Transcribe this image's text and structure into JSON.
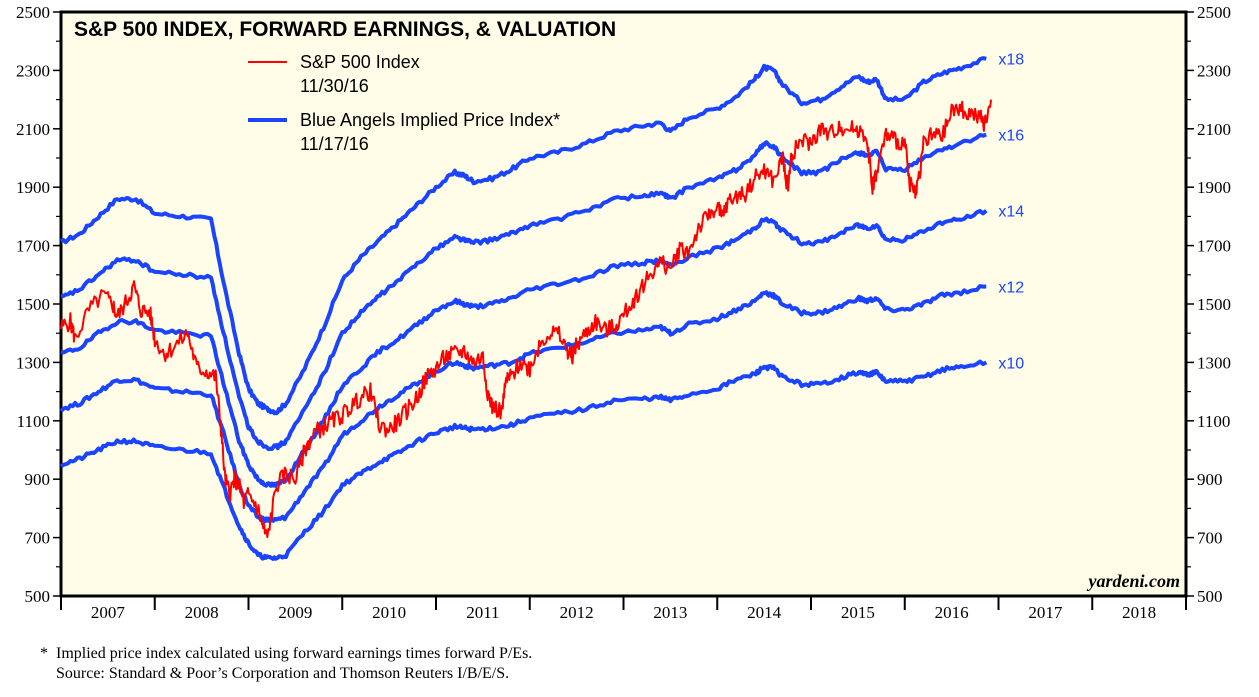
{
  "chart_data": {
    "type": "line",
    "title": "S&P 500 INDEX, FORWARD EARNINGS, & VALUATION",
    "xlabel": "",
    "ylabel": "",
    "ylim": [
      500,
      2500
    ],
    "xlim": [
      2007,
      2019
    ],
    "y_ticks": [
      500,
      700,
      900,
      1100,
      1300,
      1500,
      1700,
      1900,
      2100,
      2300,
      2500
    ],
    "x_tick_labels": [
      "2007",
      "2008",
      "2009",
      "2010",
      "2011",
      "2012",
      "2013",
      "2014",
      "2015",
      "2016",
      "2017",
      "2018"
    ],
    "legend": [
      {
        "name": "S&P 500 Index",
        "date": "11/30/16",
        "color": "#ff0000"
      },
      {
        "name": "Blue Angels Implied Price Index*",
        "date": "11/17/16",
        "color": "#1a44ff"
      }
    ],
    "legend_position": "top-left",
    "credit": "yardeni.com",
    "sp500": {
      "name": "S&P 500 Index",
      "x": [
        2007.0,
        2007.1,
        2007.15,
        2007.3,
        2007.45,
        2007.55,
        2007.6,
        2007.7,
        2007.78,
        2007.85,
        2007.95,
        2008.0,
        2008.1,
        2008.2,
        2008.35,
        2008.45,
        2008.55,
        2008.65,
        2008.7,
        2008.75,
        2008.8,
        2008.85,
        2008.9,
        2008.95,
        2009.0,
        2009.1,
        2009.15,
        2009.2,
        2009.3,
        2009.4,
        2009.5,
        2009.6,
        2009.7,
        2009.8,
        2009.9,
        2010.0,
        2010.1,
        2010.2,
        2010.3,
        2010.4,
        2010.5,
        2010.6,
        2010.7,
        2010.8,
        2010.9,
        2011.0,
        2011.1,
        2011.2,
        2011.3,
        2011.4,
        2011.5,
        2011.55,
        2011.6,
        2011.7,
        2011.75,
        2011.8,
        2011.9,
        2012.0,
        2012.1,
        2012.2,
        2012.3,
        2012.4,
        2012.45,
        2012.5,
        2012.6,
        2012.7,
        2012.8,
        2012.9,
        2013.0,
        2013.1,
        2013.2,
        2013.3,
        2013.4,
        2013.5,
        2013.6,
        2013.7,
        2013.8,
        2013.9,
        2014.0,
        2014.05,
        2014.1,
        2014.2,
        2014.3,
        2014.4,
        2014.5,
        2014.6,
        2014.7,
        2014.75,
        2014.8,
        2014.9,
        2015.0,
        2015.1,
        2015.2,
        2015.3,
        2015.4,
        2015.5,
        2015.6,
        2015.65,
        2015.7,
        2015.8,
        2015.9,
        2016.0,
        2016.05,
        2016.1,
        2016.15,
        2016.2,
        2016.3,
        2016.4,
        2016.5,
        2016.6,
        2016.7,
        2016.8,
        2016.85,
        2016.92
      ],
      "y": [
        1420,
        1440,
        1380,
        1480,
        1530,
        1500,
        1455,
        1510,
        1560,
        1480,
        1470,
        1380,
        1330,
        1350,
        1400,
        1280,
        1270,
        1250,
        1100,
        900,
        850,
        900,
        880,
        820,
        850,
        800,
        740,
        700,
        880,
        920,
        900,
        1000,
        1060,
        1080,
        1100,
        1120,
        1150,
        1180,
        1200,
        1080,
        1070,
        1100,
        1140,
        1180,
        1250,
        1280,
        1320,
        1330,
        1340,
        1300,
        1320,
        1200,
        1150,
        1130,
        1240,
        1250,
        1300,
        1280,
        1360,
        1400,
        1400,
        1340,
        1320,
        1360,
        1400,
        1440,
        1410,
        1420,
        1460,
        1510,
        1560,
        1610,
        1640,
        1620,
        1690,
        1680,
        1760,
        1800,
        1840,
        1790,
        1840,
        1870,
        1880,
        1930,
        1960,
        1920,
        2000,
        1900,
        2020,
        2060,
        2050,
        2100,
        2080,
        2110,
        2100,
        2100,
        2070,
        1900,
        1950,
        2080,
        2060,
        2050,
        1920,
        1880,
        1930,
        2050,
        2080,
        2070,
        2160,
        2170,
        2150,
        2140,
        2110,
        2200
      ]
    },
    "implied_series": [
      {
        "name": "x18",
        "x": [
          2007.0,
          2007.2,
          2007.4,
          2007.6,
          2007.8,
          2008.0,
          2008.3,
          2008.6,
          2008.75,
          2008.9,
          2009.0,
          2009.1,
          2009.2,
          2009.3,
          2009.4,
          2009.6,
          2009.8,
          2010.0,
          2010.2,
          2010.4,
          2010.6,
          2010.8,
          2011.0,
          2011.2,
          2011.3,
          2011.4,
          2011.6,
          2011.8,
          2012.0,
          2012.3,
          2012.6,
          2012.9,
          2013.2,
          2013.4,
          2013.5,
          2013.7,
          2014.0,
          2014.2,
          2014.4,
          2014.5,
          2014.6,
          2014.7,
          2014.9,
          2015.1,
          2015.3,
          2015.5,
          2015.6,
          2015.7,
          2015.8,
          2016.0,
          2016.2,
          2016.4,
          2016.6,
          2016.87
        ],
        "y": [
          1710,
          1740,
          1800,
          1860,
          1860,
          1810,
          1800,
          1790,
          1550,
          1330,
          1210,
          1160,
          1140,
          1130,
          1160,
          1280,
          1420,
          1580,
          1660,
          1720,
          1780,
          1840,
          1900,
          1950,
          1940,
          1920,
          1930,
          1960,
          2000,
          2020,
          2050,
          2090,
          2110,
          2120,
          2090,
          2140,
          2170,
          2210,
          2270,
          2310,
          2300,
          2250,
          2190,
          2200,
          2240,
          2280,
          2260,
          2270,
          2200,
          2200,
          2260,
          2290,
          2310,
          2340
        ]
      },
      {
        "name": "x16",
        "x": [
          2007.0,
          2007.2,
          2007.4,
          2007.6,
          2007.8,
          2008.0,
          2008.3,
          2008.6,
          2008.75,
          2008.9,
          2009.0,
          2009.1,
          2009.2,
          2009.3,
          2009.4,
          2009.6,
          2009.8,
          2010.0,
          2010.2,
          2010.4,
          2010.6,
          2010.8,
          2011.0,
          2011.2,
          2011.3,
          2011.4,
          2011.6,
          2011.8,
          2012.0,
          2012.3,
          2012.6,
          2012.9,
          2013.2,
          2013.4,
          2013.5,
          2013.7,
          2014.0,
          2014.2,
          2014.4,
          2014.5,
          2014.6,
          2014.7,
          2014.9,
          2015.1,
          2015.3,
          2015.5,
          2015.6,
          2015.7,
          2015.8,
          2016.0,
          2016.2,
          2016.4,
          2016.6,
          2016.87
        ],
        "y": [
          1520,
          1550,
          1600,
          1650,
          1650,
          1610,
          1600,
          1590,
          1380,
          1180,
          1080,
          1030,
          1010,
          1010,
          1030,
          1140,
          1260,
          1400,
          1470,
          1530,
          1580,
          1640,
          1690,
          1730,
          1720,
          1710,
          1720,
          1740,
          1770,
          1790,
          1820,
          1860,
          1870,
          1880,
          1860,
          1900,
          1930,
          1960,
          2010,
          2050,
          2040,
          2000,
          1950,
          1950,
          1990,
          2020,
          2010,
          2020,
          1960,
          1960,
          2000,
          2030,
          2050,
          2080
        ]
      },
      {
        "name": "x14",
        "x": [
          2007.0,
          2007.2,
          2007.4,
          2007.6,
          2007.8,
          2008.0,
          2008.3,
          2008.6,
          2008.75,
          2008.9,
          2009.0,
          2009.1,
          2009.2,
          2009.3,
          2009.4,
          2009.6,
          2009.8,
          2010.0,
          2010.2,
          2010.4,
          2010.6,
          2010.8,
          2011.0,
          2011.2,
          2011.3,
          2011.4,
          2011.6,
          2011.8,
          2012.0,
          2012.3,
          2012.6,
          2012.9,
          2013.2,
          2013.4,
          2013.5,
          2013.7,
          2014.0,
          2014.2,
          2014.4,
          2014.5,
          2014.6,
          2014.7,
          2014.9,
          2015.1,
          2015.3,
          2015.5,
          2015.6,
          2015.7,
          2015.8,
          2016.0,
          2016.2,
          2016.4,
          2016.6,
          2016.87
        ],
        "y": [
          1330,
          1350,
          1400,
          1440,
          1440,
          1410,
          1400,
          1390,
          1210,
          1030,
          950,
          900,
          880,
          880,
          900,
          1000,
          1100,
          1220,
          1280,
          1340,
          1380,
          1430,
          1480,
          1510,
          1500,
          1490,
          1500,
          1520,
          1550,
          1570,
          1590,
          1630,
          1640,
          1650,
          1630,
          1660,
          1690,
          1720,
          1760,
          1790,
          1780,
          1750,
          1710,
          1710,
          1740,
          1770,
          1760,
          1770,
          1720,
          1720,
          1750,
          1780,
          1790,
          1820
        ]
      },
      {
        "name": "x12",
        "x": [
          2007.0,
          2007.2,
          2007.4,
          2007.6,
          2007.8,
          2008.0,
          2008.3,
          2008.6,
          2008.75,
          2008.9,
          2009.0,
          2009.1,
          2009.2,
          2009.3,
          2009.4,
          2009.6,
          2009.8,
          2010.0,
          2010.2,
          2010.4,
          2010.6,
          2010.8,
          2011.0,
          2011.2,
          2011.3,
          2011.4,
          2011.6,
          2011.8,
          2012.0,
          2012.3,
          2012.6,
          2012.9,
          2013.2,
          2013.4,
          2013.5,
          2013.7,
          2014.0,
          2014.2,
          2014.4,
          2014.5,
          2014.6,
          2014.7,
          2014.9,
          2015.1,
          2015.3,
          2015.5,
          2015.6,
          2015.7,
          2015.8,
          2016.0,
          2016.2,
          2016.4,
          2016.6,
          2016.87
        ],
        "y": [
          1140,
          1160,
          1200,
          1240,
          1240,
          1210,
          1200,
          1190,
          1040,
          880,
          810,
          770,
          760,
          760,
          770,
          860,
          940,
          1050,
          1100,
          1150,
          1190,
          1230,
          1270,
          1300,
          1290,
          1280,
          1290,
          1300,
          1330,
          1350,
          1370,
          1400,
          1410,
          1420,
          1400,
          1430,
          1450,
          1480,
          1510,
          1540,
          1530,
          1500,
          1470,
          1470,
          1490,
          1520,
          1510,
          1520,
          1480,
          1480,
          1500,
          1530,
          1540,
          1560
        ]
      },
      {
        "name": "x10",
        "x": [
          2007.0,
          2007.2,
          2007.4,
          2007.6,
          2007.8,
          2008.0,
          2008.3,
          2008.6,
          2008.75,
          2008.9,
          2009.0,
          2009.1,
          2009.2,
          2009.3,
          2009.4,
          2009.6,
          2009.8,
          2010.0,
          2010.2,
          2010.4,
          2010.6,
          2010.8,
          2011.0,
          2011.2,
          2011.3,
          2011.4,
          2011.6,
          2011.8,
          2012.0,
          2012.3,
          2012.6,
          2012.9,
          2013.2,
          2013.4,
          2013.5,
          2013.7,
          2014.0,
          2014.2,
          2014.4,
          2014.5,
          2014.6,
          2014.7,
          2014.9,
          2015.1,
          2015.3,
          2015.5,
          2015.6,
          2015.7,
          2015.8,
          2016.0,
          2016.2,
          2016.4,
          2016.6,
          2016.87
        ],
        "y": [
          950,
          970,
          1000,
          1030,
          1030,
          1010,
          1000,
          990,
          860,
          740,
          680,
          640,
          630,
          630,
          640,
          720,
          790,
          880,
          920,
          960,
          990,
          1030,
          1060,
          1080,
          1075,
          1070,
          1075,
          1085,
          1110,
          1125,
          1140,
          1170,
          1175,
          1180,
          1170,
          1190,
          1210,
          1240,
          1260,
          1285,
          1280,
          1250,
          1225,
          1225,
          1245,
          1265,
          1260,
          1265,
          1235,
          1235,
          1250,
          1275,
          1285,
          1300
        ]
      }
    ]
  },
  "footnotes": [
    "*  Implied price index calculated using forward earnings times forward P/Es.",
    "    Source: Standard & Poor’s Corporation and Thomson Reuters I/B/E/S."
  ]
}
